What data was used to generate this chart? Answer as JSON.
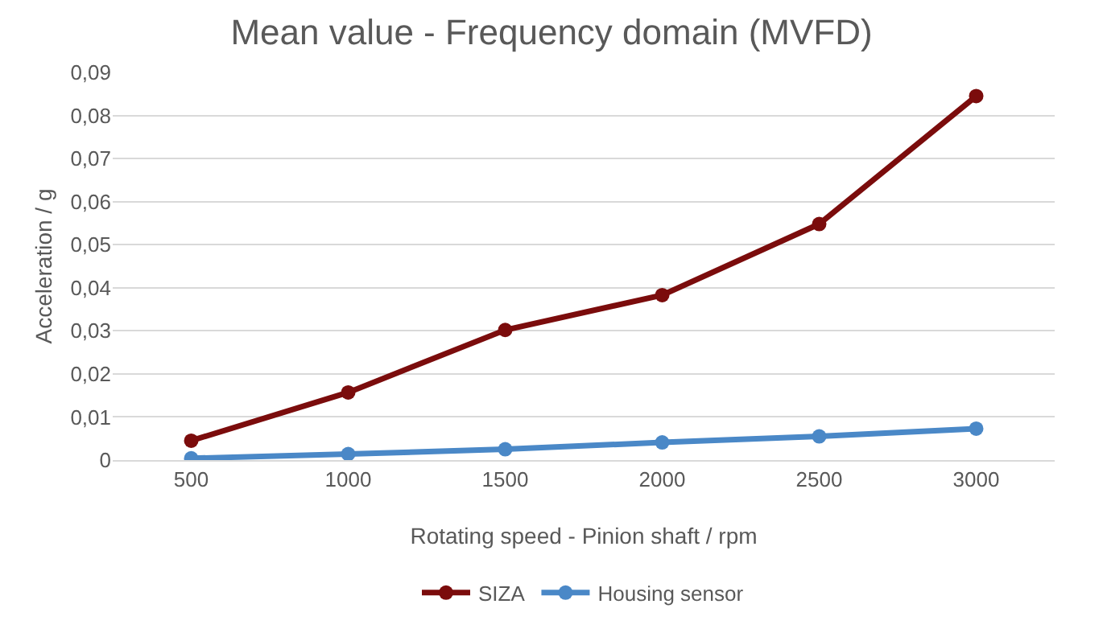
{
  "chart_data": {
    "type": "line",
    "title": "Mean value - Frequency domain (MVFD)",
    "xlabel": "Rotating speed - Pinion shaft / rpm",
    "ylabel": "Acceleration / g",
    "categories": [
      "500",
      "1000",
      "1500",
      "2000",
      "2500",
      "3000"
    ],
    "series": [
      {
        "name": "SIZA",
        "color": "#7b0c0c",
        "values": [
          0.0045,
          0.0157,
          0.0302,
          0.0383,
          0.0548,
          0.0845
        ]
      },
      {
        "name": "Housing sensor",
        "color": "#4a88c7",
        "values": [
          0.0004,
          0.0014,
          0.0025,
          0.0041,
          0.0055,
          0.0073
        ]
      }
    ],
    "ylim": [
      0,
      0.09
    ],
    "yticks": [
      0,
      {
        "value": 0.01,
        "label": "0,01"
      },
      {
        "value": 0.02,
        "label": "0,02"
      },
      {
        "value": 0.03,
        "label": "0,03"
      },
      {
        "value": 0.04,
        "label": "0,04"
      },
      {
        "value": 0.05,
        "label": "0,05"
      },
      {
        "value": 0.06,
        "label": "0,06"
      },
      {
        "value": 0.07,
        "label": "0,07"
      },
      {
        "value": 0.08,
        "label": "0,08"
      },
      {
        "value": 0.09,
        "label": "0,09"
      }
    ],
    "grid": "y",
    "legend": "bottom",
    "marker": "circle",
    "line_style": "solid"
  }
}
